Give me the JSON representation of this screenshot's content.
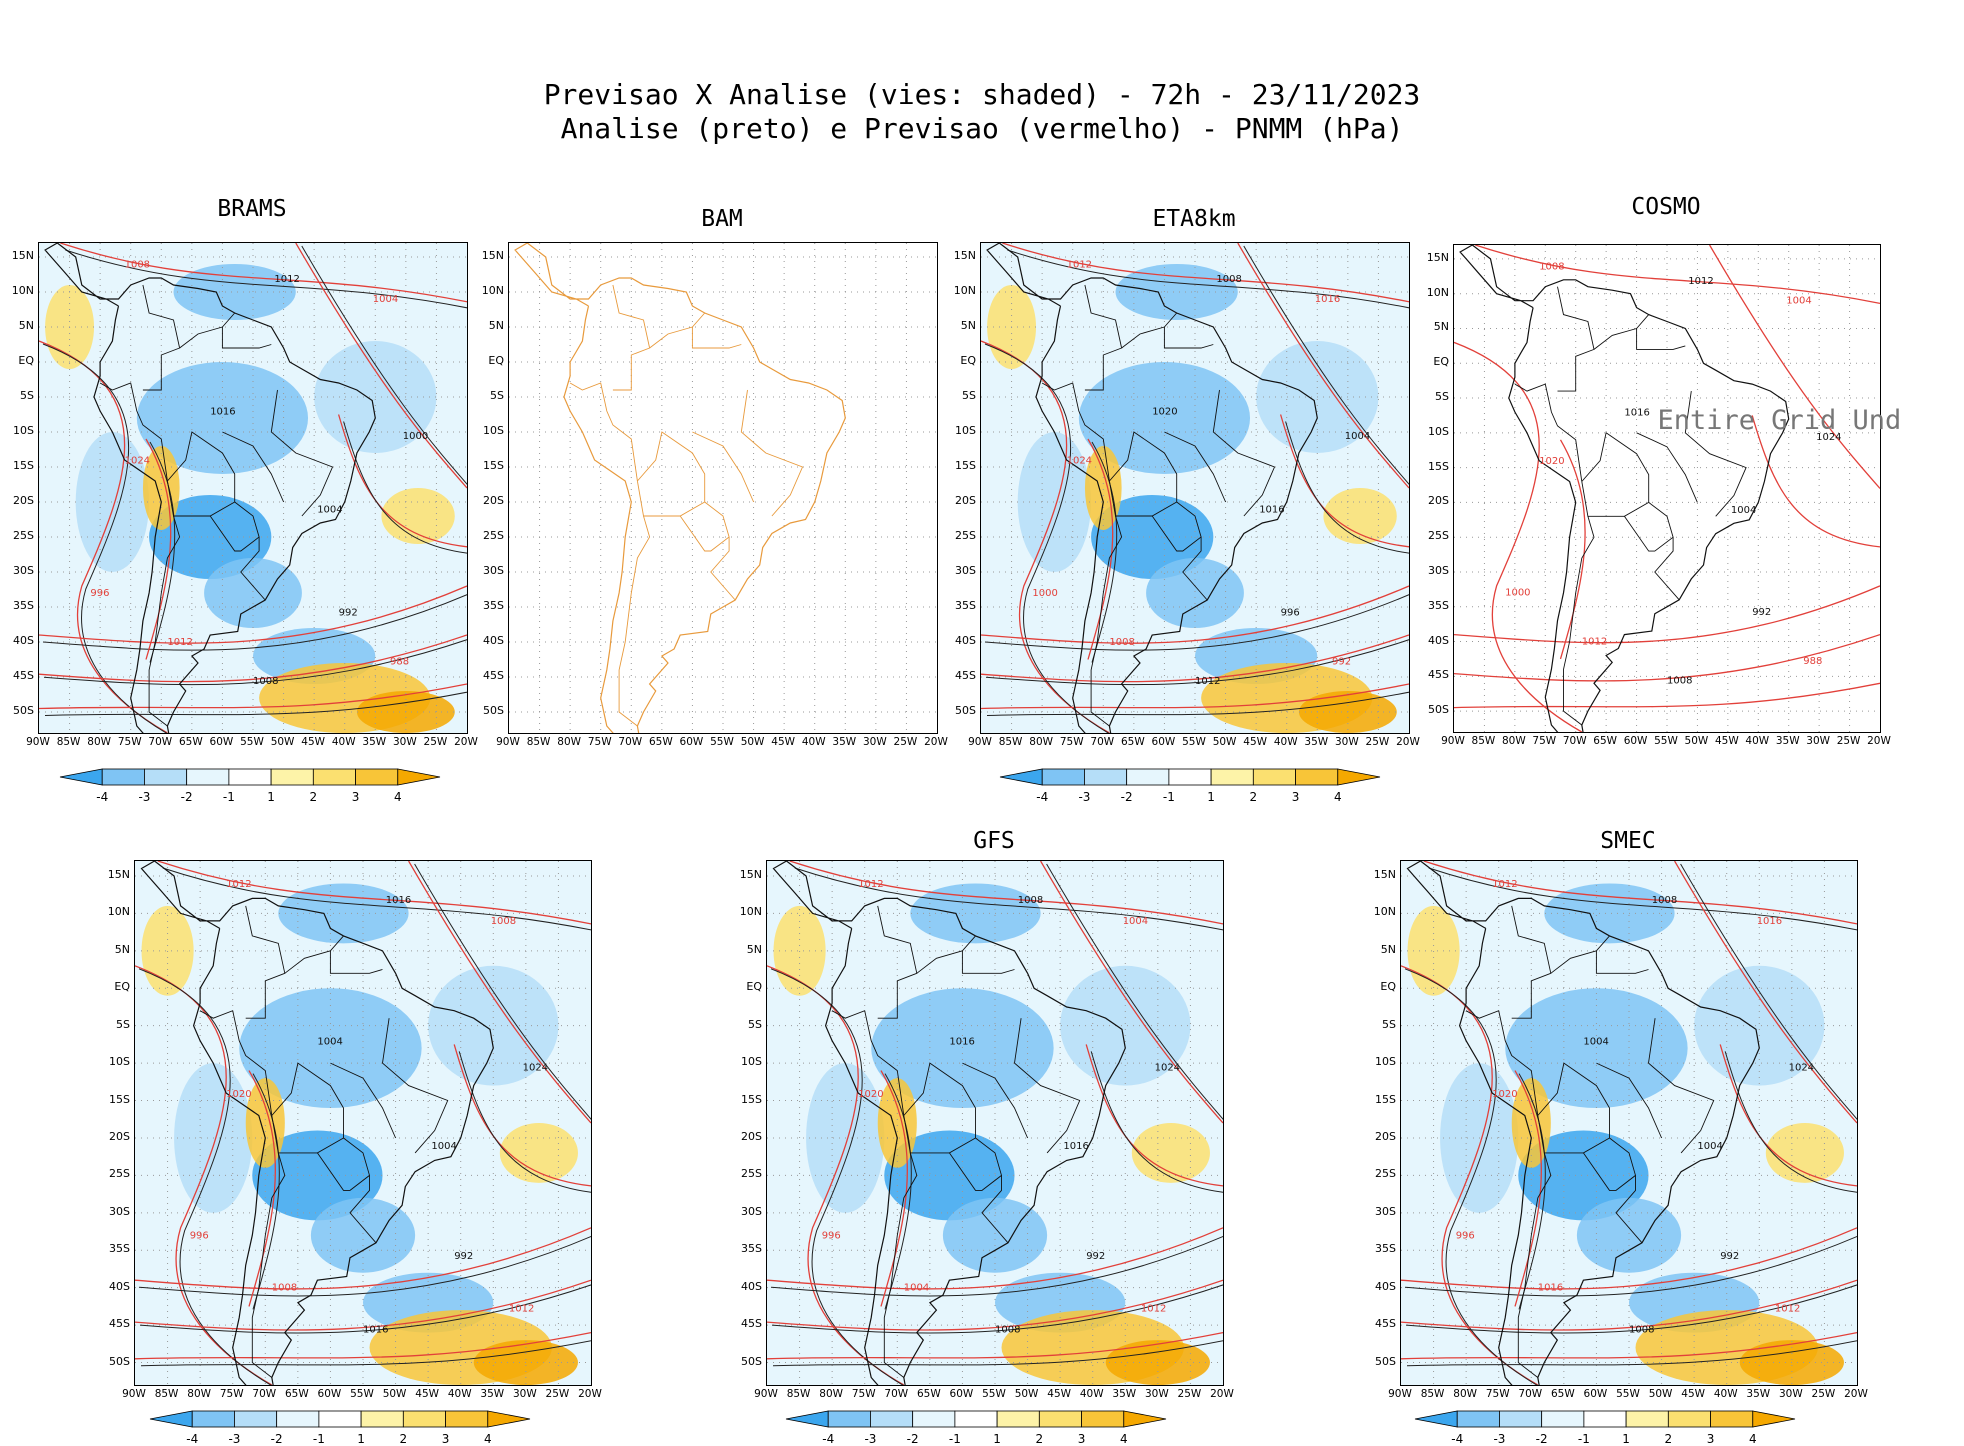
{
  "title": {
    "line1": "Previsao X Analise (vies: shaded) - 72h - 23/11/2023",
    "line2": "Analise (preto) e Previsao (vermelho) - PNMM (hPa)"
  },
  "axes": {
    "lat_labels": [
      "15N",
      "10N",
      "5N",
      "EQ",
      "5S",
      "10S",
      "15S",
      "20S",
      "25S",
      "30S",
      "35S",
      "40S",
      "45S",
      "50S"
    ],
    "lon_labels": [
      "90W",
      "85W",
      "80W",
      "75W",
      "70W",
      "65W",
      "60W",
      "55W",
      "50W",
      "45W",
      "40W",
      "35W",
      "30W",
      "25W",
      "20W"
    ]
  },
  "colorbar": {
    "labels": [
      "-4",
      "-3",
      "-2",
      "-1",
      "1",
      "2",
      "3",
      "4"
    ],
    "colors": [
      "#3ba6ee",
      "#7fc4f4",
      "#b5def8",
      "#e6f6fd",
      "#ffffff",
      "#fdf3a8",
      "#fbe070",
      "#f8c538",
      "#f5a800"
    ]
  },
  "panels": [
    {
      "name": "BRAMS",
      "has_colorbar": true,
      "note": ""
    },
    {
      "name": "BAM",
      "has_colorbar": false,
      "note": ""
    },
    {
      "name": "ETA8km",
      "has_colorbar": true,
      "note": ""
    },
    {
      "name": "COSMO",
      "has_colorbar": false,
      "note": "Entire Grid Und"
    },
    {
      "name": "",
      "has_colorbar": true,
      "note": ""
    },
    {
      "name": "GFS",
      "has_colorbar": true,
      "note": ""
    },
    {
      "name": "SMEC",
      "has_colorbar": true,
      "note": ""
    }
  ],
  "contour_labels": {
    "BRAMS": [
      "1008",
      "1012",
      "1004",
      "1016",
      "1024",
      "1000",
      "996",
      "992",
      "988"
    ],
    "ETA8km": [
      "1012",
      "1008",
      "1016",
      "1020",
      "1024",
      "1004",
      "1000",
      "996",
      "992"
    ],
    "COSMO": [
      "1008",
      "1012",
      "1004",
      "1016",
      "1020",
      "1024",
      "1000",
      "992",
      "988"
    ],
    "unnamed": [
      "1012",
      "1016",
      "1008",
      "1004",
      "1020",
      "1024",
      "996",
      "992"
    ],
    "GFS": [
      "1012",
      "1008",
      "1004",
      "1016",
      "1020",
      "1024",
      "996",
      "992"
    ],
    "SMEC": [
      "1012",
      "1008",
      "1016",
      "1004",
      "1020",
      "1024",
      "996",
      "992"
    ]
  }
}
